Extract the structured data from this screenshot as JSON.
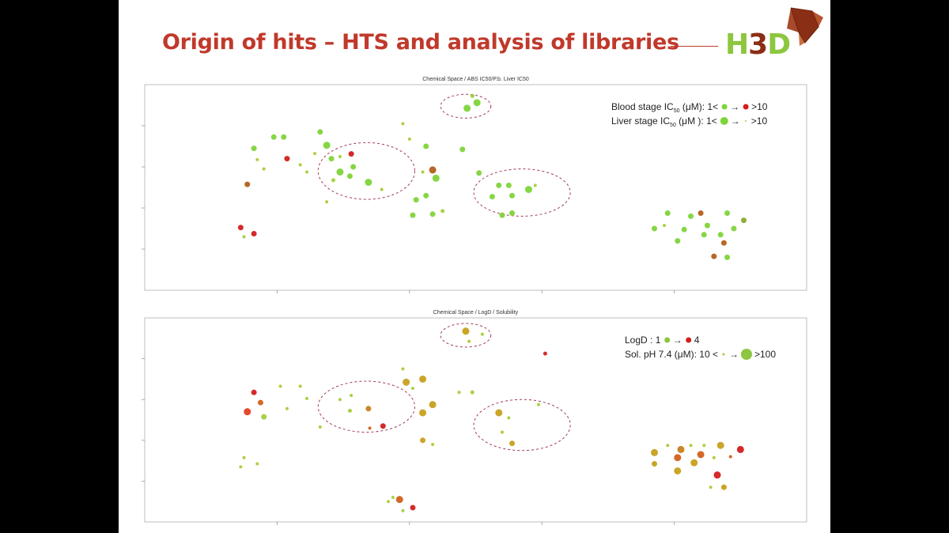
{
  "slide": {
    "title": "Origin of hits – HTS and analysis of libraries",
    "logo_text": "H3D",
    "accent_color": "#c0392b",
    "logo_green": "#8dc63f",
    "logo_brown": "#8b2e16"
  },
  "chart_data": [
    {
      "type": "scatter",
      "title": "Chemical Space / ABS IC50/P.b. Liver IC50",
      "xlim": [
        0,
        100
      ],
      "ylim": [
        0,
        100
      ],
      "grid": false,
      "legend_position": "top-right",
      "legend": [
        {
          "label": "Blood stage IC",
          "sub": "50",
          "unit": " (μM):",
          "low": "1<",
          "arrow": "→",
          "high": ">10",
          "low_color": "#7fd43a",
          "high_color": "#d21f1f",
          "encoding": "color"
        },
        {
          "label": "Liver stage IC",
          "sub": "50",
          "unit": " (μM ):",
          "low": "1<",
          "arrow": "→",
          "high": ">10",
          "encoding": "size"
        }
      ],
      "clusters": [
        {
          "cx": 48.5,
          "cy": 89.5,
          "rx": 3.8,
          "ry": 5.8
        },
        {
          "cx": 33.5,
          "cy": 58,
          "rx": 7.3,
          "ry": 13.8
        },
        {
          "cx": 57,
          "cy": 47.5,
          "rx": 7.3,
          "ry": 11.5
        }
      ],
      "points": [
        {
          "x": 48.7,
          "y": 88.5,
          "s": 4,
          "c": "#7fd43a"
        },
        {
          "x": 49.5,
          "y": 94.5,
          "s": 2,
          "c": "#9ccc3a"
        },
        {
          "x": 50.2,
          "y": 91.2,
          "s": 4,
          "c": "#7fd43a"
        },
        {
          "x": 26.5,
          "y": 77,
          "s": 3,
          "c": "#7fd43a"
        },
        {
          "x": 27.5,
          "y": 70.5,
          "s": 4,
          "c": "#7fd43a"
        },
        {
          "x": 28.2,
          "y": 64,
          "s": 3,
          "c": "#7fd43a"
        },
        {
          "x": 25.7,
          "y": 66.5,
          "s": 1.5,
          "c": "#a5cd3a"
        },
        {
          "x": 28.5,
          "y": 53.5,
          "s": 2,
          "c": "#a5cd3a"
        },
        {
          "x": 27.5,
          "y": 43,
          "s": 1.5,
          "c": "#a5cd3a"
        },
        {
          "x": 16.5,
          "y": 69,
          "s": 3,
          "c": "#7fd43a"
        },
        {
          "x": 17,
          "y": 63.5,
          "s": 1.5,
          "c": "#a5cd3a"
        },
        {
          "x": 18,
          "y": 59,
          "s": 1.5,
          "c": "#a5cd3a"
        },
        {
          "x": 19.5,
          "y": 74.5,
          "s": 3,
          "c": "#7fd43a"
        },
        {
          "x": 21,
          "y": 74.5,
          "s": 3,
          "c": "#7fd43a"
        },
        {
          "x": 21.5,
          "y": 64,
          "s": 3,
          "c": "#d21f1f"
        },
        {
          "x": 23.5,
          "y": 61,
          "s": 1.5,
          "c": "#a5cd3a"
        },
        {
          "x": 24.5,
          "y": 57.5,
          "s": 1.5,
          "c": "#a5cd3a"
        },
        {
          "x": 15.5,
          "y": 51.5,
          "s": 3,
          "c": "#b35f1a"
        },
        {
          "x": 14.5,
          "y": 30.5,
          "s": 3,
          "c": "#d21f1f"
        },
        {
          "x": 15,
          "y": 26,
          "s": 1.5,
          "c": "#a5cd3a"
        },
        {
          "x": 16.5,
          "y": 27.5,
          "s": 3,
          "c": "#d21f1f"
        },
        {
          "x": 31.2,
          "y": 66.3,
          "s": 3,
          "c": "#d21f1f"
        },
        {
          "x": 29.5,
          "y": 65,
          "s": 1.5,
          "c": "#a5cd3a"
        },
        {
          "x": 29.5,
          "y": 57.5,
          "s": 4,
          "c": "#7fd43a"
        },
        {
          "x": 31.5,
          "y": 60,
          "s": 3,
          "c": "#7fd43a"
        },
        {
          "x": 31,
          "y": 55.5,
          "s": 3,
          "c": "#7fd43a"
        },
        {
          "x": 33.8,
          "y": 52.5,
          "s": 4,
          "c": "#7fd43a"
        },
        {
          "x": 35.8,
          "y": 49,
          "s": 1.5,
          "c": "#a5cd3a"
        },
        {
          "x": 39,
          "y": 81,
          "s": 1.5,
          "c": "#a5cd3a"
        },
        {
          "x": 40,
          "y": 73.5,
          "s": 1.5,
          "c": "#a5cd3a"
        },
        {
          "x": 42.5,
          "y": 70,
          "s": 3,
          "c": "#7fd43a"
        },
        {
          "x": 42,
          "y": 57.5,
          "s": 1.5,
          "c": "#a5cd3a"
        },
        {
          "x": 44,
          "y": 54.5,
          "s": 4,
          "c": "#7fd43a"
        },
        {
          "x": 43.5,
          "y": 58.5,
          "s": 4,
          "c": "#b35f1a"
        },
        {
          "x": 41,
          "y": 44,
          "s": 3,
          "c": "#7fd43a"
        },
        {
          "x": 42.5,
          "y": 46,
          "s": 3,
          "c": "#7fd43a"
        },
        {
          "x": 40.5,
          "y": 36.5,
          "s": 3,
          "c": "#7fd43a"
        },
        {
          "x": 43.5,
          "y": 37,
          "s": 3,
          "c": "#7fd43a"
        },
        {
          "x": 45,
          "y": 38.5,
          "s": 2,
          "c": "#a5cd3a"
        },
        {
          "x": 48,
          "y": 68.5,
          "s": 3,
          "c": "#7fd43a"
        },
        {
          "x": 50.5,
          "y": 57,
          "s": 3,
          "c": "#7fd43a"
        },
        {
          "x": 52.5,
          "y": 45.5,
          "s": 3,
          "c": "#7fd43a"
        },
        {
          "x": 53.5,
          "y": 51,
          "s": 3,
          "c": "#7fd43a"
        },
        {
          "x": 55.5,
          "y": 46,
          "s": 3,
          "c": "#7fd43a"
        },
        {
          "x": 55,
          "y": 51,
          "s": 3,
          "c": "#7fd43a"
        },
        {
          "x": 54,
          "y": 36.5,
          "s": 3,
          "c": "#7fd43a"
        },
        {
          "x": 55.5,
          "y": 37.5,
          "s": 3,
          "c": "#7fd43a"
        },
        {
          "x": 58,
          "y": 49,
          "s": 4,
          "c": "#7fd43a"
        },
        {
          "x": 59,
          "y": 51,
          "s": 1.5,
          "c": "#a5cd3a"
        },
        {
          "x": 77,
          "y": 30,
          "s": 3,
          "c": "#7fd43a"
        },
        {
          "x": 79,
          "y": 37.5,
          "s": 3,
          "c": "#7fd43a"
        },
        {
          "x": 78.5,
          "y": 31.5,
          "s": 1.5,
          "c": "#a5cd3a"
        },
        {
          "x": 82.5,
          "y": 36,
          "s": 3,
          "c": "#7fd43a"
        },
        {
          "x": 81.5,
          "y": 29.5,
          "s": 3,
          "c": "#7fd43a"
        },
        {
          "x": 80.5,
          "y": 24,
          "s": 3,
          "c": "#7fd43a"
        },
        {
          "x": 84,
          "y": 37.5,
          "s": 3,
          "c": "#b35f1a"
        },
        {
          "x": 85,
          "y": 31.5,
          "s": 3,
          "c": "#7fd43a"
        },
        {
          "x": 84.5,
          "y": 27,
          "s": 3,
          "c": "#7fd43a"
        },
        {
          "x": 88,
          "y": 37.5,
          "s": 3,
          "c": "#7fd43a"
        },
        {
          "x": 87,
          "y": 27,
          "s": 3,
          "c": "#7fd43a"
        },
        {
          "x": 89,
          "y": 30,
          "s": 3,
          "c": "#7fd43a"
        },
        {
          "x": 90.5,
          "y": 34,
          "s": 3,
          "c": "#8caa2a"
        },
        {
          "x": 87.5,
          "y": 23,
          "s": 3,
          "c": "#b35f1a"
        },
        {
          "x": 86,
          "y": 16.5,
          "s": 3,
          "c": "#b35f1a"
        },
        {
          "x": 88,
          "y": 16,
          "s": 3,
          "c": "#7fd43a"
        }
      ]
    },
    {
      "type": "scatter",
      "title": "Chemical Space / LogD / Solubility",
      "xlim": [
        0,
        100
      ],
      "ylim": [
        0,
        100
      ],
      "grid": false,
      "legend_position": "top-right",
      "legend": [
        {
          "label": "LogD :",
          "low": "1",
          "arrow": "→",
          "high": "4",
          "low_color": "#8dc63f",
          "high_color": "#d21f1f",
          "encoding": "color"
        },
        {
          "label": "Sol. pH 7.4 (μM): 10 <",
          "arrow": "→",
          "high": ">100",
          "encoding": "size"
        }
      ],
      "clusters": [
        {
          "cx": 48.5,
          "cy": 91.5,
          "rx": 3.8,
          "ry": 5.8
        },
        {
          "cx": 33.5,
          "cy": 56.5,
          "rx": 7.3,
          "ry": 12.5
        },
        {
          "cx": 57,
          "cy": 47.5,
          "rx": 7.3,
          "ry": 12.5
        }
      ],
      "points": [
        {
          "x": 48.5,
          "y": 93.5,
          "s": 4,
          "c": "#c8a01e"
        },
        {
          "x": 49,
          "y": 88.5,
          "s": 1.5,
          "c": "#a5cd3a"
        },
        {
          "x": 51,
          "y": 92,
          "s": 1.5,
          "c": "#a5cd3a"
        },
        {
          "x": 16.5,
          "y": 63.5,
          "s": 3,
          "c": "#d21f1f"
        },
        {
          "x": 17.5,
          "y": 58.5,
          "s": 3,
          "c": "#d2601e"
        },
        {
          "x": 18,
          "y": 51.5,
          "s": 3,
          "c": "#a5cd3a"
        },
        {
          "x": 15.5,
          "y": 54,
          "s": 4,
          "c": "#e04020"
        },
        {
          "x": 20.5,
          "y": 66.5,
          "s": 1.5,
          "c": "#a5cd3a"
        },
        {
          "x": 21.5,
          "y": 55.5,
          "s": 1.5,
          "c": "#a5cd3a"
        },
        {
          "x": 23.5,
          "y": 66.5,
          "s": 1.5,
          "c": "#a5cd3a"
        },
        {
          "x": 24.5,
          "y": 60.5,
          "s": 1.5,
          "c": "#a5cd3a"
        },
        {
          "x": 26.5,
          "y": 46.5,
          "s": 1.5,
          "c": "#a5cd3a"
        },
        {
          "x": 15,
          "y": 31.5,
          "s": 1.5,
          "c": "#a5cd3a"
        },
        {
          "x": 14.5,
          "y": 27,
          "s": 1.5,
          "c": "#a5cd3a"
        },
        {
          "x": 17,
          "y": 28.5,
          "s": 1.5,
          "c": "#a5cd3a"
        },
        {
          "x": 29.5,
          "y": 60,
          "s": 1.5,
          "c": "#a5cd3a"
        },
        {
          "x": 31.2,
          "y": 62,
          "s": 1.5,
          "c": "#a5cd3a"
        },
        {
          "x": 31,
          "y": 54.5,
          "s": 2,
          "c": "#a5cd3a"
        },
        {
          "x": 33.8,
          "y": 55.5,
          "s": 3,
          "c": "#c8801e"
        },
        {
          "x": 34,
          "y": 46,
          "s": 1.5,
          "c": "#d2601e"
        },
        {
          "x": 36,
          "y": 47,
          "s": 3,
          "c": "#d21f1f"
        },
        {
          "x": 39,
          "y": 75,
          "s": 1.5,
          "c": "#a5cd3a"
        },
        {
          "x": 39.5,
          "y": 68.5,
          "s": 4,
          "c": "#c8a01e"
        },
        {
          "x": 40.5,
          "y": 65.5,
          "s": 1.5,
          "c": "#a5cd3a"
        },
        {
          "x": 42,
          "y": 70,
          "s": 4,
          "c": "#c8a01e"
        },
        {
          "x": 43.5,
          "y": 57.5,
          "s": 4,
          "c": "#c8a01e"
        },
        {
          "x": 42,
          "y": 53.5,
          "s": 4,
          "c": "#c8a01e"
        },
        {
          "x": 42,
          "y": 40,
          "s": 3,
          "c": "#c8a01e"
        },
        {
          "x": 43.5,
          "y": 38,
          "s": 1.5,
          "c": "#a5cd3a"
        },
        {
          "x": 47.5,
          "y": 63.5,
          "s": 1.5,
          "c": "#a5cd3a"
        },
        {
          "x": 49.5,
          "y": 63.5,
          "s": 2,
          "c": "#a5cd3a"
        },
        {
          "x": 53.5,
          "y": 53.5,
          "s": 4,
          "c": "#c8a01e"
        },
        {
          "x": 55,
          "y": 51,
          "s": 1.5,
          "c": "#a5cd3a"
        },
        {
          "x": 54,
          "y": 44,
          "s": 1.5,
          "c": "#a5cd3a"
        },
        {
          "x": 55.5,
          "y": 38.5,
          "s": 3,
          "c": "#c8a01e"
        },
        {
          "x": 59.5,
          "y": 57.5,
          "s": 1.5,
          "c": "#a5cd3a"
        },
        {
          "x": 60.5,
          "y": 82.5,
          "s": 2,
          "c": "#d21f1f"
        },
        {
          "x": 36.8,
          "y": 10,
          "s": 1.5,
          "c": "#a5cd3a"
        },
        {
          "x": 37.5,
          "y": 12,
          "s": 1.5,
          "c": "#a5cd3a"
        },
        {
          "x": 39,
          "y": 5.5,
          "s": 1.5,
          "c": "#a5cd3a"
        },
        {
          "x": 38.5,
          "y": 11,
          "s": 4,
          "c": "#d2601e"
        },
        {
          "x": 40.5,
          "y": 7,
          "s": 3,
          "c": "#d21f1f"
        },
        {
          "x": 77,
          "y": 34,
          "s": 4,
          "c": "#c8a01e"
        },
        {
          "x": 77,
          "y": 28.5,
          "s": 3,
          "c": "#c8a01e"
        },
        {
          "x": 79,
          "y": 37.5,
          "s": 1.5,
          "c": "#a5cd3a"
        },
        {
          "x": 80.5,
          "y": 31.5,
          "s": 4,
          "c": "#d2601e"
        },
        {
          "x": 81,
          "y": 35.5,
          "s": 4,
          "c": "#c8801e"
        },
        {
          "x": 80.5,
          "y": 25,
          "s": 4,
          "c": "#c8a01e"
        },
        {
          "x": 83,
          "y": 29,
          "s": 4,
          "c": "#c8a01e"
        },
        {
          "x": 82.5,
          "y": 37.5,
          "s": 1.5,
          "c": "#a5cd3a"
        },
        {
          "x": 84,
          "y": 33,
          "s": 4,
          "c": "#d2601e"
        },
        {
          "x": 84.5,
          "y": 37.5,
          "s": 1.5,
          "c": "#a5cd3a"
        },
        {
          "x": 86,
          "y": 31.5,
          "s": 1.5,
          "c": "#a5cd3a"
        },
        {
          "x": 87,
          "y": 37.5,
          "s": 4,
          "c": "#c8a01e"
        },
        {
          "x": 88.5,
          "y": 32,
          "s": 1.5,
          "c": "#d2601e"
        },
        {
          "x": 90,
          "y": 35.5,
          "s": 4,
          "c": "#d21f1f"
        },
        {
          "x": 86.5,
          "y": 23,
          "s": 4,
          "c": "#d21f1f"
        },
        {
          "x": 87.5,
          "y": 17,
          "s": 3,
          "c": "#c8a01e"
        },
        {
          "x": 85.5,
          "y": 17,
          "s": 1.5,
          "c": "#a5cd3a"
        }
      ]
    }
  ]
}
